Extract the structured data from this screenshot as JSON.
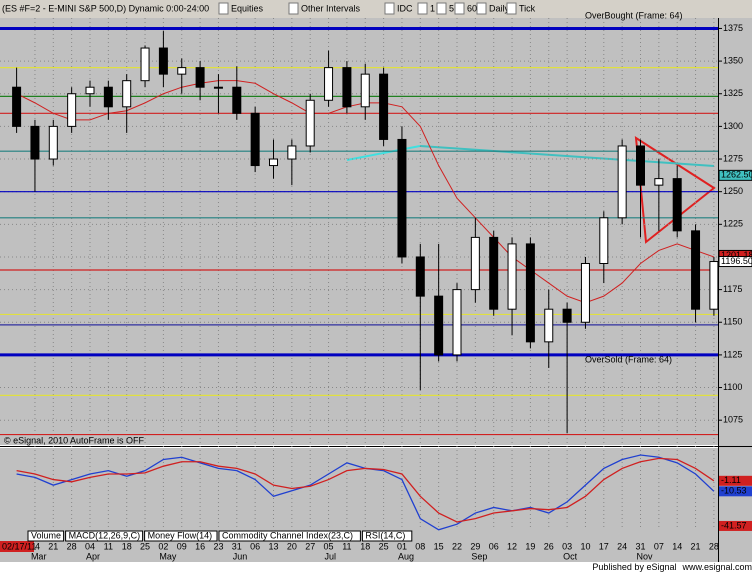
{
  "toolbar": {
    "symbol": "(ES #F=2 - E-MINI S&P 500,D) Dynamic 0:00-24:00",
    "buttons": [
      "Equities",
      "Other Intervals",
      "IDC",
      "1",
      "5",
      "60",
      "Daily",
      "Tick"
    ]
  },
  "chart_data": {
    "type": "candlestick",
    "categories": [
      null,
      "14",
      "21",
      "28",
      "04",
      "11",
      "18",
      "25",
      "02",
      "09",
      "16",
      "23",
      "31",
      "06",
      "13",
      "20",
      "27",
      "05",
      "11",
      "18",
      "25",
      "01",
      "08",
      "15",
      "22",
      "29",
      "06",
      "12",
      "19",
      "26",
      "03",
      "10",
      "17",
      "24",
      "31",
      "07",
      "14",
      "21",
      "28"
    ],
    "month_ticks": [
      {
        "value": 1,
        "label": "Mar"
      },
      {
        "value": 4,
        "label": "Apr"
      },
      {
        "value": 8,
        "label": "May"
      },
      {
        "value": 12,
        "label": "Jun"
      },
      {
        "value": 17,
        "label": "Jul"
      },
      {
        "value": 21,
        "label": "Aug"
      },
      {
        "value": 25,
        "label": "Sep"
      },
      {
        "value": 30,
        "label": "Oct"
      },
      {
        "value": 34,
        "label": "Nov"
      }
    ],
    "start_date": "02/17/11",
    "open": [
      1330,
      1300,
      1275,
      1300,
      1325,
      1330,
      1315,
      1335,
      1360,
      1340,
      1345,
      1330,
      1330,
      1310,
      1270,
      1275,
      1285,
      1320,
      1345,
      1315,
      1340,
      1290,
      1200,
      1170,
      1125,
      1175,
      1215,
      1160,
      1210,
      1135,
      1160,
      1150,
      1195,
      1230,
      1285,
      1255,
      1260,
      1220,
      1160
    ],
    "high": [
      1345,
      1305,
      1305,
      1330,
      1335,
      1335,
      1340,
      1362,
      1373,
      1352,
      1350,
      1340,
      1346,
      1315,
      1290,
      1290,
      1325,
      1358,
      1350,
      1348,
      1345,
      1300,
      1210,
      1210,
      1180,
      1230,
      1220,
      1215,
      1215,
      1175,
      1165,
      1200,
      1235,
      1290,
      1290,
      1275,
      1270,
      1225,
      1200
    ],
    "low": [
      1295,
      1250,
      1270,
      1295,
      1315,
      1305,
      1295,
      1330,
      1330,
      1325,
      1320,
      1310,
      1305,
      1265,
      1260,
      1255,
      1280,
      1315,
      1310,
      1305,
      1285,
      1195,
      1098,
      1120,
      1120,
      1165,
      1155,
      1140,
      1130,
      1115,
      1065,
      1145,
      1180,
      1225,
      1215,
      1220,
      1215,
      1150,
      1155
    ],
    "close": [
      1300,
      1275,
      1300,
      1325,
      1330,
      1315,
      1335,
      1360,
      1340,
      1345,
      1330,
      1330,
      1310,
      1270,
      1275,
      1285,
      1320,
      1345,
      1315,
      1340,
      1290,
      1200,
      1170,
      1125,
      1175,
      1215,
      1160,
      1210,
      1135,
      1160,
      1150,
      1195,
      1230,
      1285,
      1255,
      1260,
      1220,
      1160,
      1196.5
    ],
    "moving_average": {
      "color": "#d02020",
      "values": [
        1325,
        1318,
        1310,
        1305,
        1305,
        1310,
        1312,
        1318,
        1325,
        1330,
        1333,
        1335,
        1335,
        1333,
        1325,
        1318,
        1310,
        1310,
        1315,
        1318,
        1318,
        1315,
        1300,
        1270,
        1245,
        1230,
        1215,
        1200,
        1190,
        1180,
        1170,
        1165,
        1170,
        1180,
        1195,
        1205,
        1210,
        1205,
        1200
      ]
    },
    "ylim": [
      1056,
      1383
    ],
    "yticks": [
      1075,
      1100,
      1125,
      1150,
      1175,
      1200,
      1225,
      1250,
      1275,
      1300,
      1325,
      1350,
      1375
    ],
    "grid": true,
    "levels": [
      {
        "value": 1375,
        "color": "#0000c0"
      },
      {
        "value": 1345,
        "color": "#e0e040"
      },
      {
        "value": 1323,
        "color": "#208020"
      },
      {
        "value": 1310,
        "color": "#d02020"
      },
      {
        "value": 1281,
        "color": "#208080"
      },
      {
        "value": 1250,
        "color": "#0000c0"
      },
      {
        "value": 1230,
        "color": "#208080"
      },
      {
        "value": 1190,
        "color": "#d02020"
      },
      {
        "value": 1156,
        "color": "#e0e040"
      },
      {
        "value": 1148,
        "color": "#3030a0"
      },
      {
        "value": 1125,
        "color": "#0000c0"
      },
      {
        "value": 1094,
        "color": "#e0e040"
      },
      {
        "value": 1064,
        "color": "#d02020"
      }
    ],
    "price_tags": [
      {
        "value": 1262.5,
        "label": "1262.50",
        "color": "#40c0c0"
      },
      {
        "value": 1201.18,
        "label": "1201.18",
        "color": "#d02020"
      },
      {
        "value": 1196.5,
        "label": "1196.50",
        "color": "#ffffff"
      }
    ],
    "annotations": [
      "OverBought (Frame: 64)",
      "OverSold (Frame: 64)",
      "AutoFrame is OFF",
      "© eSignal, 2010"
    ],
    "macd": {
      "ylim": [
        -45.2,
        28.3
      ],
      "yticks": [
        -1.11,
        -10.53,
        -41.57
      ],
      "series": [
        {
          "color": "#2040d0",
          "values": [
            5,
            2,
            -5,
            0,
            5,
            8,
            3,
            8,
            18,
            20,
            15,
            10,
            8,
            0,
            -15,
            -10,
            -5,
            5,
            15,
            10,
            8,
            0,
            -35,
            -45,
            -40,
            -30,
            -25,
            -28,
            -25,
            -30,
            -20,
            -5,
            10,
            18,
            22,
            20,
            15,
            5,
            -10.53
          ]
        },
        {
          "color": "#d02020",
          "values": [
            8,
            5,
            0,
            -2,
            2,
            5,
            5,
            6,
            12,
            16,
            16,
            12,
            10,
            5,
            -5,
            -8,
            -6,
            0,
            8,
            10,
            9,
            5,
            -15,
            -30,
            -38,
            -35,
            -30,
            -28,
            -26,
            -27,
            -25,
            -15,
            0,
            10,
            16,
            19,
            18,
            10,
            -1.11
          ]
        }
      ]
    },
    "tabs": [
      "Volume",
      "MACD(12,26,9,C)",
      "Money Flow(14)",
      "Commodity Channel Index(23,C)",
      "RSI(14,C)"
    ]
  },
  "footer": {
    "publisher": "Published by eSignal",
    "url": "www.esignal.com"
  }
}
